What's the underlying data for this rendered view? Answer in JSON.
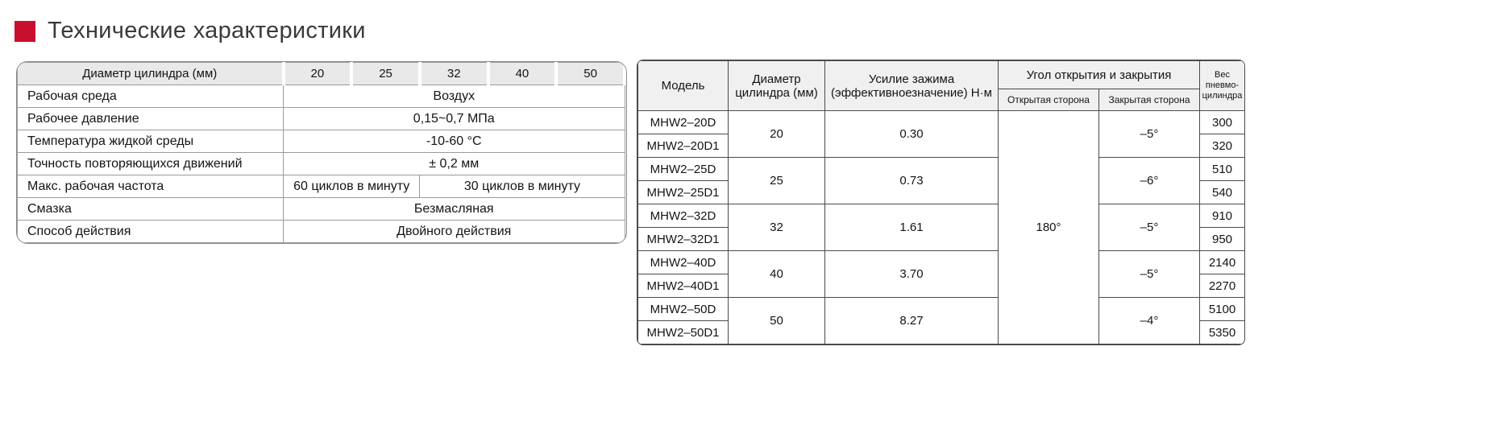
{
  "page": {
    "title": "Технические характеристики",
    "accent_color": "#C8102E"
  },
  "left_table": {
    "header": {
      "label": "Диаметр цилиндра (мм)",
      "sizes": [
        "20",
        "25",
        "32",
        "40",
        "50"
      ]
    },
    "rows": [
      {
        "label": "Рабочая среда",
        "value": "Воздух"
      },
      {
        "label": "Рабочее давление",
        "value": "0,15~0,7 МПа"
      },
      {
        "label": "Температура жидкой среды",
        "value": "-10-60 °C"
      },
      {
        "label": "Точность повторяющихся движений",
        "value": "± 0,2 мм"
      },
      {
        "label": "Макс. рабочая частота",
        "value_left": "60 циклов в минуту",
        "value_right": "30 циклов в минуту"
      },
      {
        "label": "Смазка",
        "value": "Безмасляная"
      },
      {
        "label": "Способ действия",
        "value": "Двойного действия"
      }
    ]
  },
  "right_table": {
    "headers": {
      "model": "Модель",
      "diameter": "Диаметр цилиндра (мм)",
      "force": "Усилие зажима (эффективноезначение) Н·м",
      "angle_group": "Угол открытия и закрытия",
      "open_side": "Открытая сторона",
      "closed_side": "Закрытая сторона",
      "weight": "Вес пневмо-цилиндра"
    },
    "open_angle": "180°",
    "groups": [
      {
        "models": [
          "MHW2–20D",
          "MHW2–20D1"
        ],
        "diameter": "20",
        "force": "0.30",
        "closed_angle": "–5°",
        "weights": [
          "300",
          "320"
        ]
      },
      {
        "models": [
          "MHW2–25D",
          "MHW2–25D1"
        ],
        "diameter": "25",
        "force": "0.73",
        "closed_angle": "–6°",
        "weights": [
          "510",
          "540"
        ]
      },
      {
        "models": [
          "MHW2–32D",
          "MHW2–32D1"
        ],
        "diameter": "32",
        "force": "1.61",
        "closed_angle": "–5°",
        "weights": [
          "910",
          "950"
        ]
      },
      {
        "models": [
          "MHW2–40D",
          "MHW2–40D1"
        ],
        "diameter": "40",
        "force": "3.70",
        "closed_angle": "–5°",
        "weights": [
          "2140",
          "2270"
        ]
      },
      {
        "models": [
          "MHW2–50D",
          "MHW2–50D1"
        ],
        "diameter": "50",
        "force": "8.27",
        "closed_angle": "–4°",
        "weights": [
          "5100",
          "5350"
        ]
      }
    ]
  }
}
